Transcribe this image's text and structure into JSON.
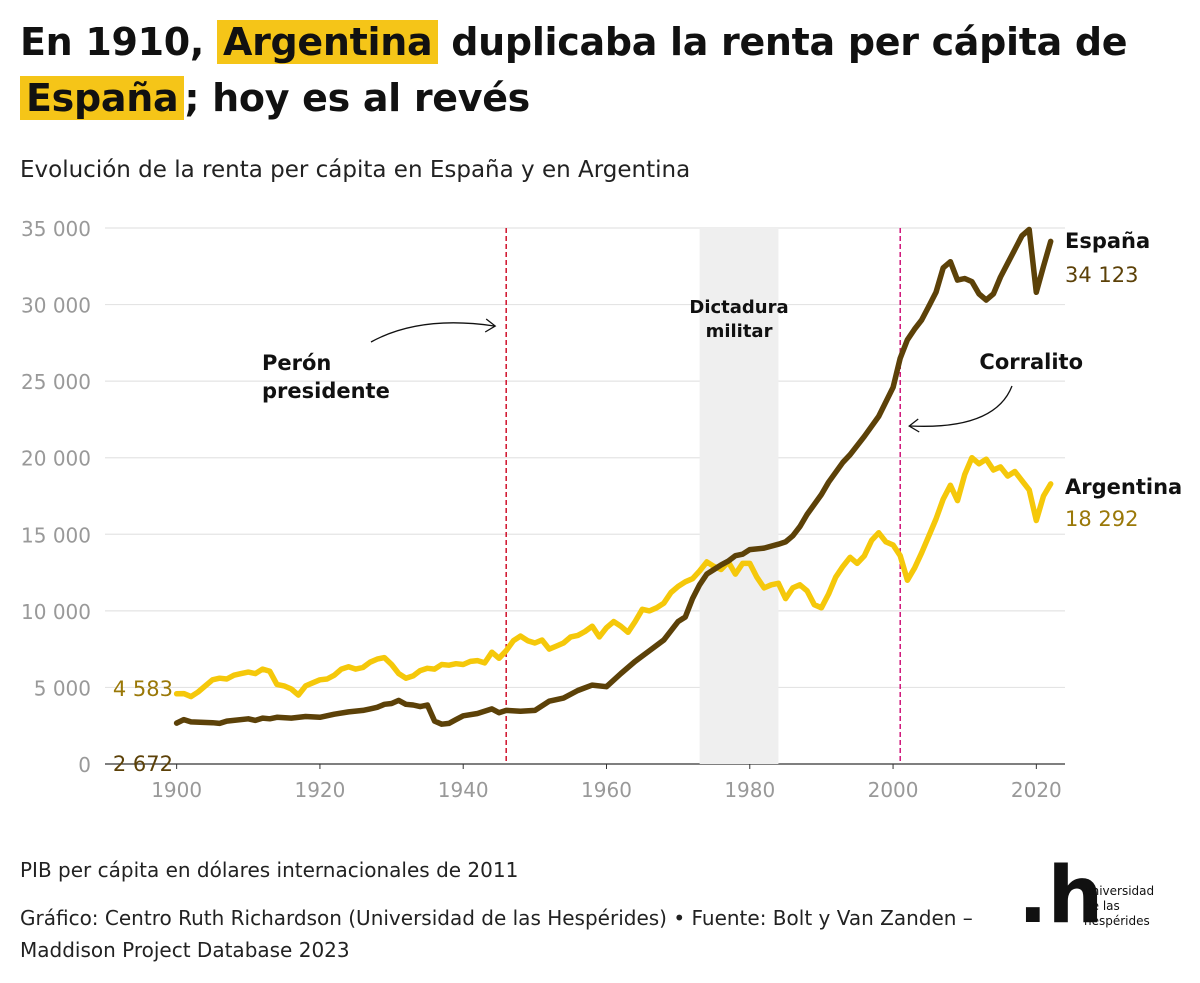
{
  "header": {
    "title_pre": "En 1910, ",
    "title_hl1": "Argentina",
    "title_mid": " duplicaba la renta per cápita de ",
    "title_hl2": "España",
    "title_post": "; hoy es al revés",
    "subtitle": "Evolución de la renta per cápita en España y en Argentina"
  },
  "footer": {
    "note": "PIB per cápita en dólares internacionales de 2011",
    "credit": "Gráfico: Centro Ruth Richardson (Universidad de las Hespérides) • Fuente: Bolt y Van Zanden – Maddison Project Database 2023"
  },
  "logo": {
    "mark": ".h",
    "line1": "universidad",
    "line2": "de las",
    "line3": "hespérides"
  },
  "colors": {
    "spain": "#5c4108",
    "argentina": "#f5c80a",
    "argentina_label": "#9a7808",
    "highlight": "#f5c518",
    "peron_line": "#d0102a",
    "corralito_line": "#d0147a",
    "shade": "#efefef",
    "grid": "#e4e4e4",
    "tick": "#999999"
  },
  "chart_data": {
    "type": "line",
    "xlim": [
      1890,
      2024
    ],
    "ylim": [
      0,
      35000
    ],
    "xticks": [
      1900,
      1920,
      1940,
      1960,
      1980,
      2000,
      2020
    ],
    "yticks": [
      0,
      5000,
      10000,
      15000,
      20000,
      25000,
      30000,
      35000
    ],
    "xtick_labels": [
      "1900",
      "1920",
      "1940",
      "1960",
      "1980",
      "2000",
      "2020"
    ],
    "ytick_labels": [
      "0",
      "5 000",
      "10 000",
      "15 000",
      "20 000",
      "25 000",
      "30 000",
      "35 000"
    ],
    "grid": true,
    "series": [
      {
        "name": "España",
        "end_label": "34 123",
        "start_label": "2 672",
        "points": [
          [
            1900,
            2672
          ],
          [
            1901,
            2900
          ],
          [
            1902,
            2750
          ],
          [
            1905,
            2700
          ],
          [
            1906,
            2650
          ],
          [
            1907,
            2800
          ],
          [
            1910,
            2950
          ],
          [
            1911,
            2850
          ],
          [
            1912,
            3000
          ],
          [
            1913,
            2950
          ],
          [
            1914,
            3050
          ],
          [
            1916,
            3000
          ],
          [
            1918,
            3100
          ],
          [
            1920,
            3050
          ],
          [
            1922,
            3250
          ],
          [
            1924,
            3400
          ],
          [
            1926,
            3500
          ],
          [
            1927,
            3600
          ],
          [
            1928,
            3700
          ],
          [
            1929,
            3900
          ],
          [
            1930,
            3950
          ],
          [
            1931,
            4150
          ],
          [
            1932,
            3900
          ],
          [
            1933,
            3850
          ],
          [
            1934,
            3750
          ],
          [
            1935,
            3850
          ],
          [
            1936,
            2800
          ],
          [
            1937,
            2600
          ],
          [
            1938,
            2650
          ],
          [
            1939,
            2900
          ],
          [
            1940,
            3150
          ],
          [
            1942,
            3300
          ],
          [
            1944,
            3600
          ],
          [
            1945,
            3350
          ],
          [
            1946,
            3500
          ],
          [
            1948,
            3450
          ],
          [
            1950,
            3500
          ],
          [
            1952,
            4100
          ],
          [
            1954,
            4300
          ],
          [
            1956,
            4800
          ],
          [
            1958,
            5150
          ],
          [
            1960,
            5050
          ],
          [
            1962,
            5900
          ],
          [
            1964,
            6700
          ],
          [
            1966,
            7400
          ],
          [
            1968,
            8100
          ],
          [
            1970,
            9300
          ],
          [
            1971,
            9600
          ],
          [
            1972,
            10800
          ],
          [
            1973,
            11700
          ],
          [
            1974,
            12400
          ],
          [
            1975,
            12700
          ],
          [
            1976,
            13000
          ],
          [
            1977,
            13250
          ],
          [
            1978,
            13600
          ],
          [
            1979,
            13700
          ],
          [
            1980,
            14000
          ],
          [
            1982,
            14100
          ],
          [
            1984,
            14350
          ],
          [
            1985,
            14500
          ],
          [
            1986,
            14900
          ],
          [
            1987,
            15500
          ],
          [
            1988,
            16300
          ],
          [
            1990,
            17600
          ],
          [
            1991,
            18400
          ],
          [
            1993,
            19700
          ],
          [
            1994,
            20200
          ],
          [
            1996,
            21400
          ],
          [
            1998,
            22700
          ],
          [
            2000,
            24600
          ],
          [
            2001,
            26500
          ],
          [
            2002,
            27700
          ],
          [
            2003,
            28400
          ],
          [
            2004,
            29000
          ],
          [
            2005,
            29900
          ],
          [
            2006,
            30800
          ],
          [
            2007,
            32400
          ],
          [
            2008,
            32800
          ],
          [
            2009,
            31600
          ],
          [
            2010,
            31700
          ],
          [
            2011,
            31500
          ],
          [
            2012,
            30700
          ],
          [
            2013,
            30300
          ],
          [
            2014,
            30700
          ],
          [
            2015,
            31800
          ],
          [
            2016,
            32700
          ],
          [
            2017,
            33600
          ],
          [
            2018,
            34500
          ],
          [
            2019,
            34900
          ],
          [
            2020,
            30800
          ],
          [
            2021,
            32500
          ],
          [
            2022,
            34123
          ]
        ]
      },
      {
        "name": "Argentina",
        "end_label": "18 292",
        "start_label": "4 583",
        "points": [
          [
            1900,
            4583
          ],
          [
            1901,
            4600
          ],
          [
            1902,
            4400
          ],
          [
            1903,
            4700
          ],
          [
            1904,
            5100
          ],
          [
            1905,
            5500
          ],
          [
            1906,
            5600
          ],
          [
            1907,
            5550
          ],
          [
            1908,
            5800
          ],
          [
            1909,
            5900
          ],
          [
            1910,
            6000
          ],
          [
            1911,
            5900
          ],
          [
            1912,
            6200
          ],
          [
            1913,
            6050
          ],
          [
            1914,
            5200
          ],
          [
            1915,
            5100
          ],
          [
            1916,
            4900
          ],
          [
            1917,
            4500
          ],
          [
            1918,
            5100
          ],
          [
            1919,
            5300
          ],
          [
            1920,
            5500
          ],
          [
            1921,
            5550
          ],
          [
            1922,
            5800
          ],
          [
            1923,
            6200
          ],
          [
            1924,
            6350
          ],
          [
            1925,
            6200
          ],
          [
            1926,
            6300
          ],
          [
            1927,
            6650
          ],
          [
            1928,
            6850
          ],
          [
            1929,
            6950
          ],
          [
            1930,
            6500
          ],
          [
            1931,
            5900
          ],
          [
            1932,
            5600
          ],
          [
            1933,
            5750
          ],
          [
            1934,
            6100
          ],
          [
            1935,
            6250
          ],
          [
            1936,
            6200
          ],
          [
            1937,
            6500
          ],
          [
            1938,
            6450
          ],
          [
            1939,
            6550
          ],
          [
            1940,
            6500
          ],
          [
            1941,
            6700
          ],
          [
            1942,
            6750
          ],
          [
            1943,
            6600
          ],
          [
            1944,
            7300
          ],
          [
            1945,
            6900
          ],
          [
            1946,
            7400
          ],
          [
            1947,
            8050
          ],
          [
            1948,
            8350
          ],
          [
            1949,
            8050
          ],
          [
            1950,
            7900
          ],
          [
            1951,
            8100
          ],
          [
            1952,
            7500
          ],
          [
            1953,
            7700
          ],
          [
            1954,
            7900
          ],
          [
            1955,
            8300
          ],
          [
            1956,
            8400
          ],
          [
            1957,
            8650
          ],
          [
            1958,
            9000
          ],
          [
            1959,
            8300
          ],
          [
            1960,
            8900
          ],
          [
            1961,
            9300
          ],
          [
            1962,
            9000
          ],
          [
            1963,
            8600
          ],
          [
            1964,
            9300
          ],
          [
            1965,
            10100
          ],
          [
            1966,
            10000
          ],
          [
            1967,
            10200
          ],
          [
            1968,
            10500
          ],
          [
            1969,
            11200
          ],
          [
            1970,
            11600
          ],
          [
            1971,
            11900
          ],
          [
            1972,
            12100
          ],
          [
            1973,
            12600
          ],
          [
            1974,
            13200
          ],
          [
            1975,
            12900
          ],
          [
            1976,
            12700
          ],
          [
            1977,
            13200
          ],
          [
            1978,
            12400
          ],
          [
            1979,
            13100
          ],
          [
            1980,
            13100
          ],
          [
            1981,
            12200
          ],
          [
            1982,
            11500
          ],
          [
            1983,
            11700
          ],
          [
            1984,
            11800
          ],
          [
            1985,
            10800
          ],
          [
            1986,
            11500
          ],
          [
            1987,
            11700
          ],
          [
            1988,
            11300
          ],
          [
            1989,
            10400
          ],
          [
            1990,
            10200
          ],
          [
            1991,
            11100
          ],
          [
            1992,
            12200
          ],
          [
            1993,
            12900
          ],
          [
            1994,
            13500
          ],
          [
            1995,
            13100
          ],
          [
            1996,
            13600
          ],
          [
            1997,
            14600
          ],
          [
            1998,
            15100
          ],
          [
            1999,
            14500
          ],
          [
            2000,
            14300
          ],
          [
            2001,
            13600
          ],
          [
            2002,
            12000
          ],
          [
            2003,
            12800
          ],
          [
            2004,
            13800
          ],
          [
            2005,
            14900
          ],
          [
            2006,
            16000
          ],
          [
            2007,
            17300
          ],
          [
            2008,
            18200
          ],
          [
            2009,
            17200
          ],
          [
            2010,
            18900
          ],
          [
            2011,
            20000
          ],
          [
            2012,
            19600
          ],
          [
            2013,
            19900
          ],
          [
            2014,
            19200
          ],
          [
            2015,
            19400
          ],
          [
            2016,
            18800
          ],
          [
            2017,
            19100
          ],
          [
            2018,
            18500
          ],
          [
            2019,
            17900
          ],
          [
            2020,
            15900
          ],
          [
            2021,
            17500
          ],
          [
            2022,
            18292
          ]
        ]
      }
    ],
    "annotations": [
      {
        "type": "vline",
        "x": 1946,
        "label": "Perón presidente",
        "label_lines": [
          "Perón",
          "presidente"
        ]
      },
      {
        "type": "band",
        "x0": 1973,
        "x1": 1984,
        "label": "Dictadura militar",
        "label_lines": [
          "Dictadura",
          "militar"
        ]
      },
      {
        "type": "vline",
        "x": 2001,
        "label": "Corralito",
        "label_lines": [
          "Corralito"
        ]
      }
    ]
  }
}
